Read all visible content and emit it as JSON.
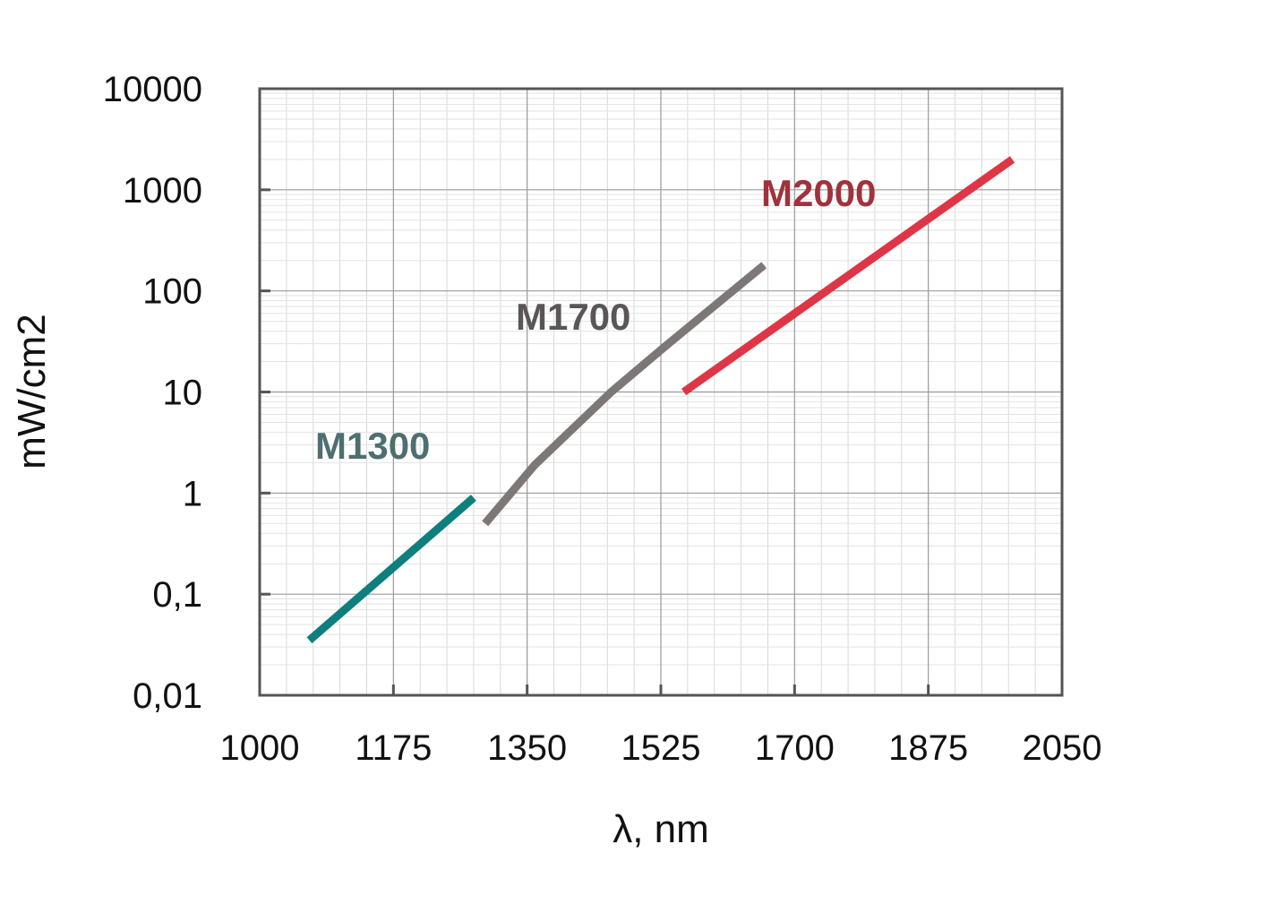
{
  "chart_data": {
    "type": "line",
    "title": "",
    "xlabel": "λ, nm",
    "ylabel": "mW/cm2",
    "xlim": [
      1000,
      2050
    ],
    "ylim": [
      0.01,
      10000
    ],
    "yscale": "log",
    "grid": true,
    "x_ticks": [
      "1000",
      "1175",
      "1350",
      "1525",
      "1700",
      "1875",
      "2050"
    ],
    "y_ticks": [
      "10000",
      "1000",
      "100",
      "10",
      "1",
      "0,1",
      "0,01"
    ],
    "series": [
      {
        "name": "M1300",
        "color": "#0e7f7c",
        "label_color": "#4e6f70",
        "x": [
          1065,
          1280
        ],
        "y": [
          0.035,
          0.9
        ]
      },
      {
        "name": "M1700",
        "color": "#7d7778",
        "label_color": "#5a5556",
        "x": [
          1295,
          1360,
          1460,
          1530,
          1660
        ],
        "y": [
          0.5,
          1.9,
          10,
          28,
          180
        ]
      },
      {
        "name": "M2000",
        "color": "#de3646",
        "label_color": "#a0323c",
        "x": [
          1555,
          1985
        ],
        "y": [
          10,
          2000
        ]
      }
    ]
  }
}
